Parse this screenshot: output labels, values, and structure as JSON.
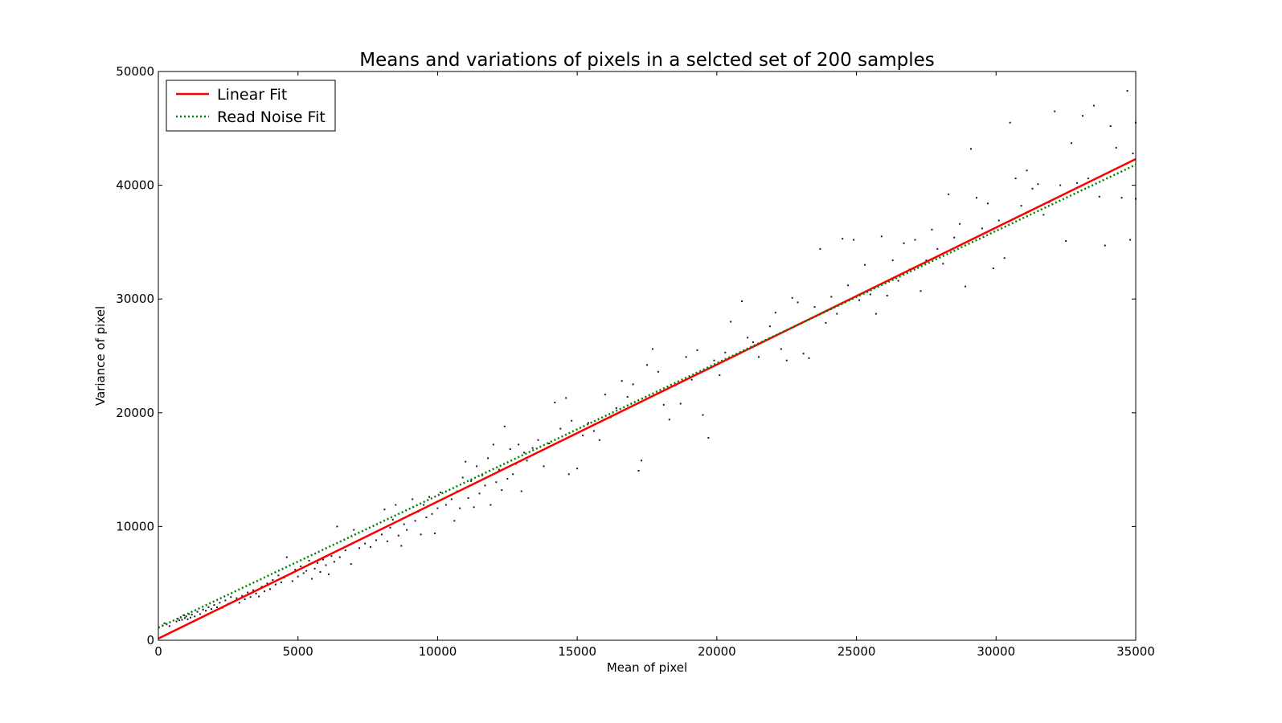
{
  "chart_data": {
    "type": "scatter",
    "title": "Means and variations of pixels in a selcted set of 200 samples",
    "xlabel": "Mean of pixel",
    "ylabel": "Variance of pixel",
    "xlim": [
      0,
      35000
    ],
    "ylim": [
      0,
      50000
    ],
    "xticks": [
      0,
      5000,
      10000,
      15000,
      20000,
      25000,
      30000,
      35000
    ],
    "yticks": [
      0,
      10000,
      20000,
      30000,
      40000,
      50000
    ],
    "xtick_labels": [
      "0",
      "5000",
      "10000",
      "15000",
      "20000",
      "25000",
      "30000",
      "35000"
    ],
    "ytick_labels": [
      "0",
      "10000",
      "20000",
      "30000",
      "40000",
      "50000"
    ],
    "grid": false,
    "legend_position": "top-left",
    "series": [
      {
        "name": "Linear Fit",
        "kind": "line",
        "style": "solid",
        "color": "#ff0000",
        "x": [
          0,
          35000
        ],
        "y": [
          150,
          42300
        ]
      },
      {
        "name": "Read Noise Fit",
        "kind": "line",
        "style": "dotted",
        "color": "#008000",
        "x": [
          0,
          35000
        ],
        "y": [
          1100,
          41800
        ]
      }
    ],
    "points": [
      [
        150,
        1300
      ],
      [
        220,
        1500
      ],
      [
        300,
        1400
      ],
      [
        400,
        1250
      ],
      [
        650,
        1650
      ],
      [
        700,
        1900
      ],
      [
        750,
        1750
      ],
      [
        800,
        2000
      ],
      [
        850,
        1800
      ],
      [
        900,
        2200
      ],
      [
        950,
        1950
      ],
      [
        1000,
        2100
      ],
      [
        1050,
        1850
      ],
      [
        1100,
        2300
      ],
      [
        1150,
        2000
      ],
      [
        1200,
        2250
      ],
      [
        1300,
        2100
      ],
      [
        1400,
        2500
      ],
      [
        1500,
        2300
      ],
      [
        1600,
        2700
      ],
      [
        1700,
        2600
      ],
      [
        1800,
        2900
      ],
      [
        1900,
        2750
      ],
      [
        2000,
        3100
      ],
      [
        2100,
        2900
      ],
      [
        2200,
        3300
      ],
      [
        2300,
        2850
      ],
      [
        2400,
        3500
      ],
      [
        2500,
        3200
      ],
      [
        2600,
        3800
      ],
      [
        2700,
        3400
      ],
      [
        2800,
        3700
      ],
      [
        2900,
        3300
      ],
      [
        3000,
        3900
      ],
      [
        3100,
        3600
      ],
      [
        3200,
        4200
      ],
      [
        3300,
        3800
      ],
      [
        3400,
        4400
      ],
      [
        3500,
        4100
      ],
      [
        3600,
        3850
      ],
      [
        3700,
        4700
      ],
      [
        3800,
        4300
      ],
      [
        3900,
        5000
      ],
      [
        4000,
        4500
      ],
      [
        4100,
        5300
      ],
      [
        4200,
        4900
      ],
      [
        4300,
        5700
      ],
      [
        4400,
        5100
      ],
      [
        4500,
        5500
      ],
      [
        4600,
        7300
      ],
      [
        4700,
        5800
      ],
      [
        4800,
        5200
      ],
      [
        4900,
        6200
      ],
      [
        5000,
        5600
      ],
      [
        5100,
        6500
      ],
      [
        5200,
        5900
      ],
      [
        5300,
        6100
      ],
      [
        5400,
        7000
      ],
      [
        5500,
        5400
      ],
      [
        5600,
        6300
      ],
      [
        5700,
        6800
      ],
      [
        5800,
        6000
      ],
      [
        5900,
        7100
      ],
      [
        6000,
        6600
      ],
      [
        6100,
        5800
      ],
      [
        6200,
        7400
      ],
      [
        6300,
        6900
      ],
      [
        6400,
        10000
      ],
      [
        6500,
        7300
      ],
      [
        6700,
        7900
      ],
      [
        6900,
        6700
      ],
      [
        7000,
        9700
      ],
      [
        7200,
        8100
      ],
      [
        7400,
        8500
      ],
      [
        7600,
        8200
      ],
      [
        7800,
        8800
      ],
      [
        8000,
        9300
      ],
      [
        8100,
        11500
      ],
      [
        8200,
        8700
      ],
      [
        8300,
        9900
      ],
      [
        8400,
        10600
      ],
      [
        8500,
        11900
      ],
      [
        8600,
        9200
      ],
      [
        8700,
        8300
      ],
      [
        8800,
        10200
      ],
      [
        8900,
        9700
      ],
      [
        9000,
        11000
      ],
      [
        9100,
        12400
      ],
      [
        9200,
        10500
      ],
      [
        9300,
        11300
      ],
      [
        9400,
        9300
      ],
      [
        9500,
        11900
      ],
      [
        9600,
        10800
      ],
      [
        9700,
        12600
      ],
      [
        9800,
        11100
      ],
      [
        9900,
        9400
      ],
      [
        10000,
        11600
      ],
      [
        10100,
        13000
      ],
      [
        10300,
        11900
      ],
      [
        10500,
        12400
      ],
      [
        10600,
        10500
      ],
      [
        10700,
        13100
      ],
      [
        10800,
        11600
      ],
      [
        10900,
        14300
      ],
      [
        11000,
        15700
      ],
      [
        11100,
        12500
      ],
      [
        11200,
        14000
      ],
      [
        11300,
        11700
      ],
      [
        11400,
        15300
      ],
      [
        11500,
        12900
      ],
      [
        11600,
        14500
      ],
      [
        11700,
        13600
      ],
      [
        11800,
        16000
      ],
      [
        11900,
        11900
      ],
      [
        12000,
        17200
      ],
      [
        12100,
        13900
      ],
      [
        12200,
        15000
      ],
      [
        12300,
        13200
      ],
      [
        12400,
        18800
      ],
      [
        12500,
        14200
      ],
      [
        12600,
        16800
      ],
      [
        12700,
        14600
      ],
      [
        12800,
        15500
      ],
      [
        12900,
        17200
      ],
      [
        13000,
        13100
      ],
      [
        13100,
        16500
      ],
      [
        13200,
        15800
      ],
      [
        13400,
        16900
      ],
      [
        13600,
        17600
      ],
      [
        13800,
        15300
      ],
      [
        14000,
        17300
      ],
      [
        14200,
        20900
      ],
      [
        14400,
        18600
      ],
      [
        14600,
        21300
      ],
      [
        14700,
        14600
      ],
      [
        14800,
        19300
      ],
      [
        15000,
        15100
      ],
      [
        15200,
        18000
      ],
      [
        15400,
        19100
      ],
      [
        15600,
        18400
      ],
      [
        15800,
        17600
      ],
      [
        16000,
        21600
      ],
      [
        16200,
        19600
      ],
      [
        16400,
        20400
      ],
      [
        16600,
        22800
      ],
      [
        16800,
        21400
      ],
      [
        17000,
        22500
      ],
      [
        17200,
        14900
      ],
      [
        17300,
        15800
      ],
      [
        17500,
        24200
      ],
      [
        17700,
        25600
      ],
      [
        17900,
        23600
      ],
      [
        18100,
        20700
      ],
      [
        18300,
        19400
      ],
      [
        18500,
        22400
      ],
      [
        18700,
        20800
      ],
      [
        18900,
        24900
      ],
      [
        19100,
        22900
      ],
      [
        19300,
        25500
      ],
      [
        19500,
        19800
      ],
      [
        19700,
        17800
      ],
      [
        19900,
        24600
      ],
      [
        20100,
        23300
      ],
      [
        20300,
        25300
      ],
      [
        20500,
        28000
      ],
      [
        20700,
        25100
      ],
      [
        20900,
        29800
      ],
      [
        21100,
        26600
      ],
      [
        21300,
        26200
      ],
      [
        21500,
        24900
      ],
      [
        21700,
        26300
      ],
      [
        21900,
        27600
      ],
      [
        22100,
        28800
      ],
      [
        22300,
        25600
      ],
      [
        22500,
        24600
      ],
      [
        22700,
        30100
      ],
      [
        22900,
        29700
      ],
      [
        23100,
        25200
      ],
      [
        23300,
        24800
      ],
      [
        23500,
        29300
      ],
      [
        23700,
        34400
      ],
      [
        23900,
        27900
      ],
      [
        24100,
        30200
      ],
      [
        24300,
        28700
      ],
      [
        24500,
        35300
      ],
      [
        24700,
        31200
      ],
      [
        24900,
        35200
      ],
      [
        25100,
        29900
      ],
      [
        25300,
        33000
      ],
      [
        25500,
        30400
      ],
      [
        25700,
        28700
      ],
      [
        25900,
        35500
      ],
      [
        26100,
        30300
      ],
      [
        26300,
        33400
      ],
      [
        26500,
        31600
      ],
      [
        26700,
        34900
      ],
      [
        26900,
        32600
      ],
      [
        27100,
        35200
      ],
      [
        27300,
        30700
      ],
      [
        27500,
        33400
      ],
      [
        27700,
        36100
      ],
      [
        27900,
        34400
      ],
      [
        28100,
        33100
      ],
      [
        28300,
        39200
      ],
      [
        28500,
        35400
      ],
      [
        28700,
        36600
      ],
      [
        28900,
        31100
      ],
      [
        29100,
        43200
      ],
      [
        29300,
        38900
      ],
      [
        29500,
        36200
      ],
      [
        29700,
        38400
      ],
      [
        29900,
        32700
      ],
      [
        30100,
        36900
      ],
      [
        30300,
        33600
      ],
      [
        30500,
        45500
      ],
      [
        30700,
        40600
      ],
      [
        30900,
        38200
      ],
      [
        31100,
        41300
      ],
      [
        31300,
        39700
      ],
      [
        31500,
        40100
      ],
      [
        31700,
        37400
      ],
      [
        31900,
        38500
      ],
      [
        32100,
        46500
      ],
      [
        32300,
        40000
      ],
      [
        32500,
        35100
      ],
      [
        32700,
        43700
      ],
      [
        32900,
        40200
      ],
      [
        33100,
        46100
      ],
      [
        33300,
        40600
      ],
      [
        33500,
        47000
      ],
      [
        33700,
        39000
      ],
      [
        33900,
        34700
      ],
      [
        34100,
        45200
      ],
      [
        34300,
        43300
      ],
      [
        34500,
        38900
      ],
      [
        34700,
        48300
      ],
      [
        34800,
        35200
      ],
      [
        34900,
        42800
      ],
      [
        35000,
        45500
      ],
      [
        35000,
        38800
      ]
    ]
  }
}
